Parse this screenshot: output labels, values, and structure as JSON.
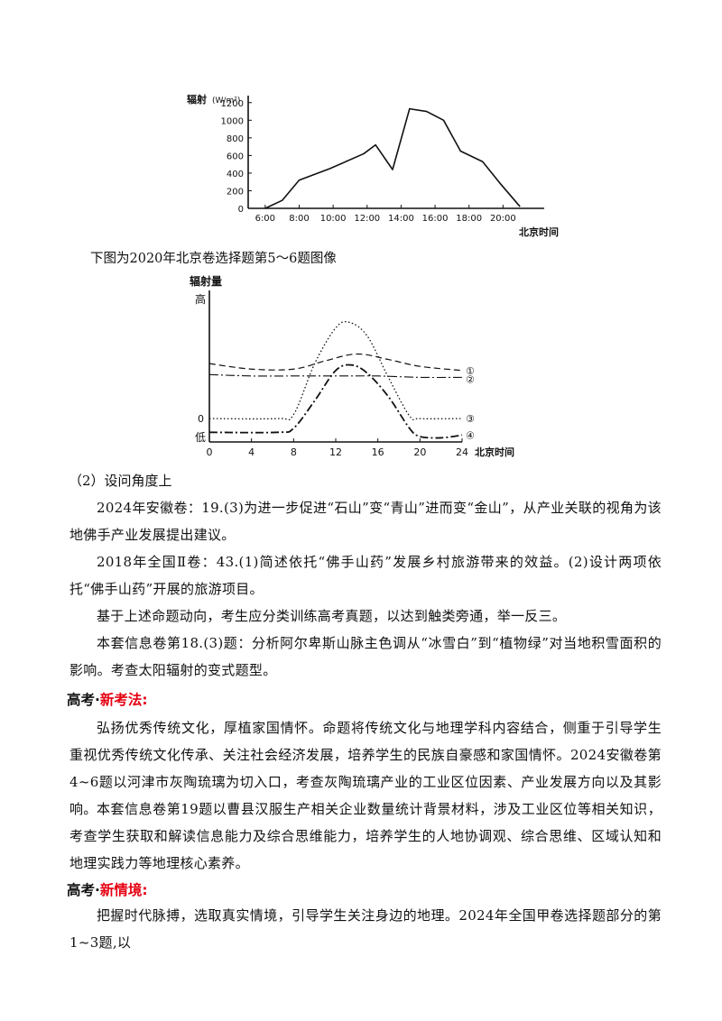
{
  "chart_data": [
    {
      "type": "line",
      "ylabel": "辐射",
      "yunit": "(W/m²)",
      "xlabel": "北京时间",
      "yticks": [
        "0",
        "200",
        "400",
        "600",
        "800",
        "1000",
        "1200"
      ],
      "xticks": [
        "6:00",
        "8:00",
        "10:00",
        "12:00",
        "14:00",
        "16:00",
        "18:00",
        "20:00"
      ],
      "ylim": [
        0,
        1300
      ],
      "xlim": [
        5,
        22
      ],
      "grid": false,
      "x": [
        6,
        7,
        8,
        9.8,
        11.8,
        12.5,
        13.5,
        14.5,
        15.5,
        16.5,
        17.5,
        18.8,
        19.8,
        21
      ],
      "values": [
        0,
        90,
        320,
        450,
        620,
        720,
        440,
        1130,
        1100,
        1000,
        650,
        530,
        290,
        20
      ]
    },
    {
      "type": "line",
      "ylabel": "辐射量",
      "y_high_label": "高",
      "y_low_label": "低",
      "y_zero_label": "0",
      "xlabel": "北京时间",
      "xticks": [
        "0",
        "4",
        "8",
        "12",
        "16",
        "20",
        "24"
      ],
      "xlim": [
        0,
        24
      ],
      "grid": false,
      "series": [
        {
          "name": "①",
          "style": "dashed",
          "x": [
            0,
            4,
            8,
            11,
            14,
            17,
            20,
            24
          ],
          "values": [
            52,
            48,
            48,
            54,
            59,
            55,
            50,
            47
          ]
        },
        {
          "name": "②",
          "style": "dashdot",
          "x": [
            0,
            4,
            8,
            12,
            16,
            20,
            24
          ],
          "values": [
            44,
            43,
            43,
            43,
            43,
            42,
            42
          ]
        },
        {
          "name": "③",
          "style": "dotted",
          "x": [
            0,
            6.5,
            8,
            10,
            12,
            13.3,
            15,
            17,
            19,
            20,
            24
          ],
          "values": [
            12,
            12,
            15,
            52,
            78,
            82,
            72,
            42,
            14,
            12,
            12
          ]
        },
        {
          "name": "④",
          "style": "dashdot-heavy",
          "x": [
            0,
            6.5,
            8,
            10,
            12,
            13.5,
            15,
            17,
            19,
            20,
            22,
            24
          ],
          "values": [
            2,
            2,
            5,
            25,
            47,
            51,
            45,
            28,
            5,
            -1,
            -2,
            0
          ]
        }
      ]
    }
  ],
  "caption2": "下图为2020年北京卷选择题第5～6题图像",
  "section_label": "（2）设问角度上",
  "paragraphs": [
    "2024年安徽卷：19.(3)为进一步促进“石山”变“青山”进而变“金山”，从产业关联的视角为该地佛手产业发展提出建议。",
    "2018年全国Ⅱ卷：43.(1)简述依托“佛手山药”发展乡村旅游带来的效益。(2)设计两项依托“佛手山药”开展的旅游项目。",
    "基于上述命题动向，考生应分类训练高考真题，以达到触类旁通，举一反三。",
    "本套信息卷第18.(3)题：分析阿尔卑斯山脉主色调从“冰雪白”到“植物绿”对当地积雪面积的影响。考查太阳辐射的变式题型。"
  ],
  "heading1": {
    "prefix": "高考",
    "dot": "·",
    "highlight": "新考法",
    "suffix": ":"
  },
  "paragraphs2": [
    "弘扬优秀传统文化，厚植家国情怀。命题将传统文化与地理学科内容结合，侧重于引导学生重视优秀传统文化传承、关注社会经济发展，培养学生的民族自豪感和家国情怀。2024安徽卷第4~6题以河津市灰陶琉璃为切入口，考查灰陶琉璃产业的工业区位因素、产业发展方向以及其影响。",
    "本套信息卷第19题以曹县汉服生产相关企业数量统计背景材料，涉及工业区位等相关知识，考查学生获取和解读信息能力及综合思维能力，培养学生的人地协调观、综合思维、区域认知和地理实践力等地理核心素养。"
  ],
  "heading2": {
    "prefix": "高考",
    "dot": "·",
    "highlight": "新情境",
    "suffix": ":"
  },
  "paragraphs3": [
    "把握时代脉搏，选取真实情境，引导学生关注身边的地理。2024年全国甲卷选择题部分的第1~3题,以"
  ]
}
